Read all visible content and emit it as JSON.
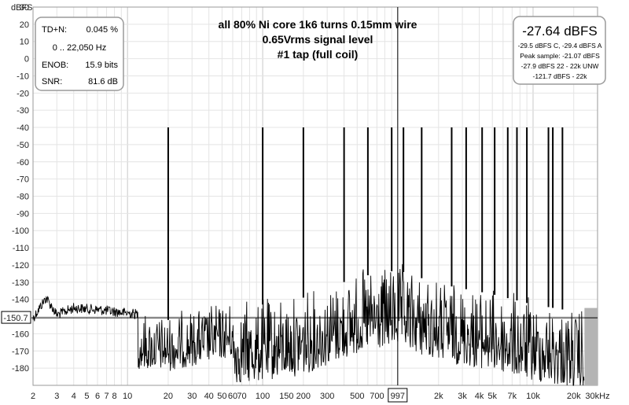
{
  "chart_data": {
    "type": "line",
    "title_lines": [
      "all 80% Ni core 1k6 turns 0.15mm wire",
      "0.65Vrms signal level",
      "#1 tap (full coil)"
    ],
    "ylabel": "dBFS",
    "xlabel": "",
    "x_scale": "log",
    "xlim": [
      2,
      30000
    ],
    "ylim": [
      -190,
      30
    ],
    "y_ticks": [
      30,
      20,
      10,
      0,
      -10,
      -20,
      -30,
      -40,
      -50,
      -60,
      -70,
      -80,
      -90,
      -100,
      -110,
      -120,
      -130,
      -140,
      -150,
      -160,
      -170,
      -180
    ],
    "x_ticks": [
      {
        "v": 2,
        "label": "2"
      },
      {
        "v": 3,
        "label": "3"
      },
      {
        "v": 4,
        "label": "4"
      },
      {
        "v": 5,
        "label": "5"
      },
      {
        "v": 6,
        "label": "6"
      },
      {
        "v": 7,
        "label": "7"
      },
      {
        "v": 8,
        "label": "8"
      },
      {
        "v": 10,
        "label": "10"
      },
      {
        "v": 20,
        "label": "20"
      },
      {
        "v": 30,
        "label": "30"
      },
      {
        "v": 40,
        "label": "40"
      },
      {
        "v": 50,
        "label": "50"
      },
      {
        "v": 60,
        "label": "60"
      },
      {
        "v": 70,
        "label": "70"
      },
      {
        "v": 100,
        "label": "100"
      },
      {
        "v": 150,
        "label": "150"
      },
      {
        "v": 200,
        "label": "200"
      },
      {
        "v": 300,
        "label": "300"
      },
      {
        "v": 500,
        "label": "500"
      },
      {
        "v": 700,
        "label": "700"
      },
      {
        "v": 997,
        "label": "997"
      },
      {
        "v": 2000,
        "label": "2k"
      },
      {
        "v": 3000,
        "label": "3k"
      },
      {
        "v": 4000,
        "label": "4k"
      },
      {
        "v": 5000,
        "label": "5k"
      },
      {
        "v": 7000,
        "label": "7k"
      },
      {
        "v": 10000,
        "label": "10k"
      },
      {
        "v": 20000,
        "label": "20k"
      },
      {
        "v": 30000,
        "label": "30kHz"
      }
    ],
    "marker_frequency": 997,
    "noise_floor_marker": "-150.7",
    "spike_lines": [
      {
        "x": 20,
        "y": -40
      },
      {
        "x": 100,
        "y": -40
      },
      {
        "x": 200,
        "y": -40
      },
      {
        "x": 400,
        "y": -40
      },
      {
        "x": 600,
        "y": -40
      },
      {
        "x": 900,
        "y": -40
      },
      {
        "x": 1100,
        "y": -40
      },
      {
        "x": 1500,
        "y": -40
      },
      {
        "x": 2500,
        "y": -40
      },
      {
        "x": 3200,
        "y": -40
      },
      {
        "x": 4200,
        "y": -40
      },
      {
        "x": 5200,
        "y": -40
      },
      {
        "x": 6500,
        "y": -40
      },
      {
        "x": 7600,
        "y": -40
      },
      {
        "x": 9000,
        "y": -40
      },
      {
        "x": 13000,
        "y": -40
      },
      {
        "x": 14000,
        "y": -40
      },
      {
        "x": 16500,
        "y": -40
      }
    ],
    "spectrum_envelope": [
      {
        "x": 2,
        "y": -148
      },
      {
        "x": 2.5,
        "y": -136
      },
      {
        "x": 3,
        "y": -146
      },
      {
        "x": 4,
        "y": -142
      },
      {
        "x": 6,
        "y": -143
      },
      {
        "x": 10,
        "y": -145
      },
      {
        "x": 20,
        "y": -147
      },
      {
        "x": 50,
        "y": -140
      },
      {
        "x": 100,
        "y": -138
      },
      {
        "x": 200,
        "y": -134
      },
      {
        "x": 500,
        "y": -122
      },
      {
        "x": 1000,
        "y": -118
      },
      {
        "x": 2000,
        "y": -126
      },
      {
        "x": 5000,
        "y": -132
      },
      {
        "x": 10000,
        "y": -138
      },
      {
        "x": 20000,
        "y": -142
      },
      {
        "x": 24000,
        "y": -145
      }
    ],
    "spectrum_floor": -190,
    "colors": {
      "trace": "#000000",
      "grid_minor": "#e4e4e4",
      "grid_major": "#c8c8c8",
      "rolloff": "#b4b4b4",
      "marker_line": "#000000"
    }
  },
  "stats_box": {
    "rows": [
      {
        "label": "TD+N:",
        "value": "0.045 %"
      },
      {
        "label": "",
        "value": "0 .. 22,050 Hz"
      },
      {
        "label": "ENOB:",
        "value": "15.9 bits"
      },
      {
        "label": "SNR:",
        "value": "81.6 dB"
      }
    ]
  },
  "level_box": {
    "main": "-27.64 dBFS",
    "lines": [
      "-29.5 dBFS C, -29.4 dBFS A",
      "Peak sample: -21.07 dBFS",
      "-27.9 dBFS 22 - 22k UNW",
      "-121.7 dBFS - 22k"
    ]
  }
}
